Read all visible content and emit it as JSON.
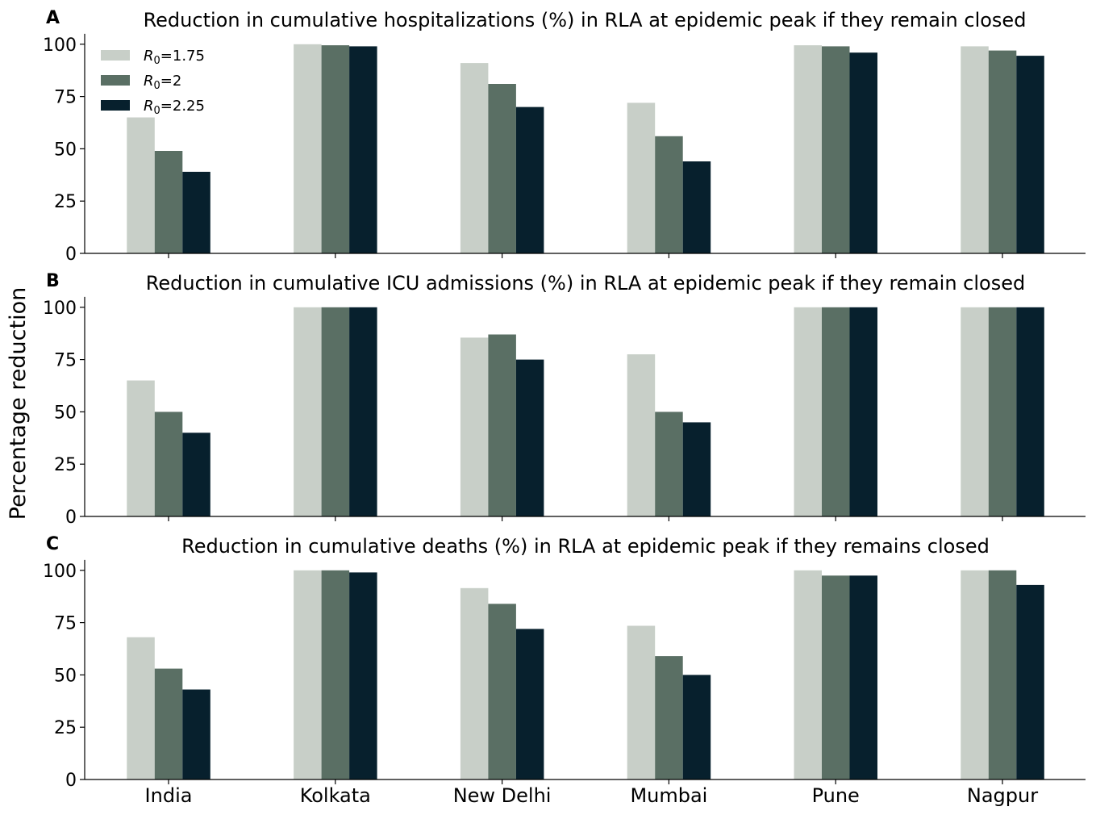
{
  "figure": {
    "ylabel": "Percentage reduction"
  },
  "colors": {
    "r175": "#c8cfc8",
    "r2": "#5a6f64",
    "r225": "#07202d"
  },
  "chart_data": [
    {
      "type": "bar",
      "panel": "A",
      "title": "Reduction in cumulative hospitalizations (%) in RLA at epidemic peak  if they remain closed",
      "categories": [
        "India",
        "Kolkata",
        "New Delhi",
        "Mumbai",
        "Pune",
        "Nagpur"
      ],
      "series": [
        {
          "name": "R0=1.75",
          "values": [
            65,
            100,
            91,
            72,
            99.5,
            99
          ]
        },
        {
          "name": "R0=2",
          "values": [
            49,
            99.5,
            81,
            56,
            99,
            97
          ]
        },
        {
          "name": "R0=2.25",
          "values": [
            39,
            99,
            70,
            44,
            96,
            94.5
          ]
        }
      ],
      "yticks": [
        "0",
        "25",
        "50",
        "75",
        "100"
      ],
      "ylim": [
        0,
        105
      ],
      "legend": {
        "position": "top-left",
        "entries": [
          {
            "base": "R",
            "sub": "0",
            "rest": "=1.75"
          },
          {
            "base": "R",
            "sub": "0",
            "rest": "=2"
          },
          {
            "base": "R",
            "sub": "0",
            "rest": "=2.25"
          }
        ]
      }
    },
    {
      "type": "bar",
      "panel": "B",
      "title": "Reduction in cumulative ICU admissions (%) in RLA at epidemic peak if they remain closed",
      "categories": [
        "India",
        "Kolkata",
        "New Delhi",
        "Mumbai",
        "Pune",
        "Nagpur"
      ],
      "series": [
        {
          "name": "R0=1.75",
          "values": [
            65,
            100,
            85.5,
            77.5,
            100,
            100
          ]
        },
        {
          "name": "R0=2",
          "values": [
            50,
            100,
            87,
            50,
            100,
            100
          ]
        },
        {
          "name": "R0=2.25",
          "values": [
            40,
            100,
            75,
            45,
            100,
            100
          ]
        }
      ],
      "yticks": [
        "0",
        "25",
        "50",
        "75",
        "100"
      ],
      "ylim": [
        0,
        105
      ]
    },
    {
      "type": "bar",
      "panel": "C",
      "title": "Reduction in cumulative deaths (%) in RLA at epidemic peak if they remains closed",
      "categories": [
        "India",
        "Kolkata",
        "New Delhi",
        "Mumbai",
        "Pune",
        "Nagpur"
      ],
      "series": [
        {
          "name": "R0=1.75",
          "values": [
            68,
            100,
            91.5,
            73.5,
            100,
            100
          ]
        },
        {
          "name": "R0=2",
          "values": [
            53,
            100,
            84,
            59,
            97.5,
            100
          ]
        },
        {
          "name": "R0=2.25",
          "values": [
            43,
            99,
            72,
            50,
            97.5,
            93
          ]
        }
      ],
      "yticks": [
        "0",
        "25",
        "50",
        "75",
        "100"
      ],
      "ylim": [
        0,
        105
      ]
    }
  ]
}
